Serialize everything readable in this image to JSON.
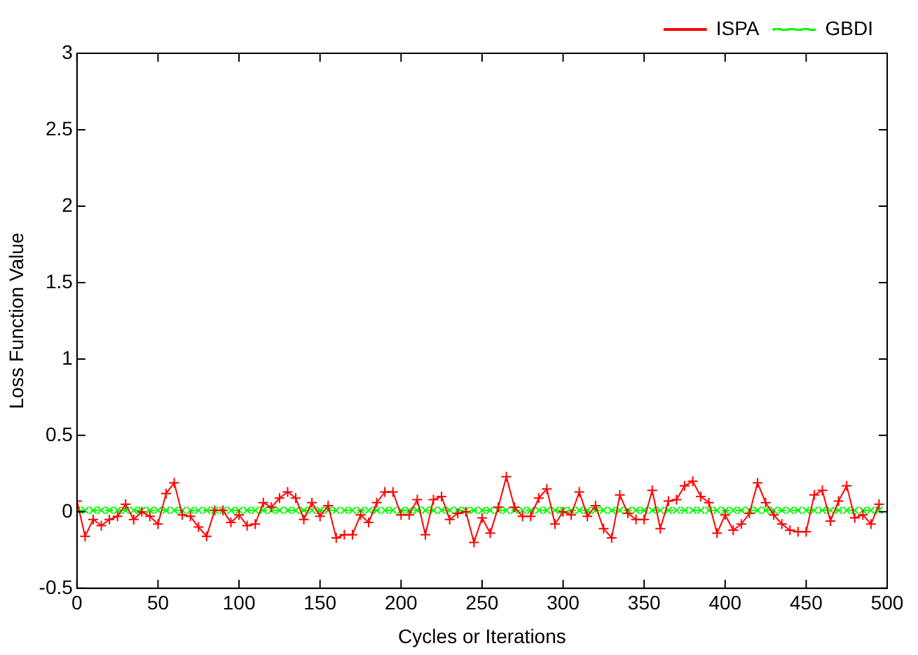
{
  "chart_data": {
    "type": "line",
    "xlabel": "Cycles or Iterations",
    "ylabel": "Loss Function Value",
    "xlim": [
      0,
      500
    ],
    "xticks": [
      0,
      50,
      100,
      150,
      200,
      250,
      300,
      350,
      400,
      450,
      500
    ],
    "ylim": [
      -0.5,
      3
    ],
    "yticks": [
      -0.5,
      0,
      0.5,
      1,
      1.5,
      2,
      2.5,
      3
    ],
    "grid": false,
    "legend": "top right",
    "marker": "cross",
    "x": [
      0,
      5,
      10,
      15,
      20,
      25,
      30,
      35,
      40,
      45,
      50,
      55,
      60,
      65,
      70,
      75,
      80,
      85,
      90,
      95,
      100,
      105,
      110,
      115,
      120,
      125,
      130,
      135,
      140,
      145,
      150,
      155,
      160,
      165,
      170,
      175,
      180,
      185,
      190,
      195,
      200,
      205,
      210,
      215,
      220,
      225,
      230,
      235,
      240,
      245,
      250,
      255,
      260,
      265,
      270,
      275,
      280,
      285,
      290,
      295,
      300,
      305,
      310,
      315,
      320,
      325,
      330,
      335,
      340,
      345,
      350,
      355,
      360,
      365,
      370,
      375,
      380,
      385,
      390,
      395,
      400,
      405,
      410,
      415,
      420,
      425,
      430,
      435,
      440,
      445,
      450,
      455,
      460,
      465,
      470,
      475,
      480,
      485,
      490,
      495
    ],
    "series": [
      {
        "name": "ISPA",
        "color": "#ff0000",
        "line_style": "solid",
        "values": [
          0.07,
          -0.16,
          -0.05,
          -0.09,
          -0.05,
          -0.03,
          0.05,
          -0.05,
          0.0,
          -0.03,
          -0.08,
          0.12,
          0.19,
          -0.02,
          -0.03,
          -0.1,
          -0.16,
          0.01,
          0.01,
          -0.07,
          -0.02,
          -0.09,
          -0.08,
          0.06,
          0.03,
          0.09,
          0.13,
          0.09,
          -0.05,
          0.06,
          -0.03,
          0.04,
          -0.17,
          -0.15,
          -0.15,
          -0.02,
          -0.07,
          0.06,
          0.13,
          0.13,
          -0.02,
          -0.02,
          0.08,
          -0.15,
          0.08,
          0.1,
          -0.05,
          -0.01,
          0.0,
          -0.2,
          -0.04,
          -0.14,
          0.03,
          0.23,
          0.03,
          -0.03,
          -0.03,
          0.09,
          0.15,
          -0.08,
          0.0,
          -0.02,
          0.13,
          -0.03,
          0.04,
          -0.11,
          -0.17,
          0.11,
          -0.01,
          -0.05,
          -0.05,
          0.14,
          -0.11,
          0.07,
          0.08,
          0.17,
          0.2,
          0.1,
          0.06,
          -0.14,
          -0.02,
          -0.12,
          -0.08,
          -0.01,
          0.19,
          0.06,
          -0.02,
          -0.08,
          -0.12,
          -0.13,
          -0.13,
          0.11,
          0.14,
          -0.06,
          0.07,
          0.17,
          -0.04,
          -0.02,
          -0.08,
          0.05
        ]
      },
      {
        "name": "GBDI",
        "color": "#00ff00",
        "line_style": "dashed",
        "values": [
          0.01,
          0.01,
          0.01,
          0.01,
          0.01,
          0.01,
          0.01,
          0.01,
          0.01,
          0.01,
          0.01,
          0.01,
          0.01,
          0.01,
          0.01,
          0.01,
          0.01,
          0.01,
          0.01,
          0.01,
          0.01,
          0.01,
          0.01,
          0.01,
          0.01,
          0.01,
          0.01,
          0.01,
          0.01,
          0.01,
          0.01,
          0.01,
          0.01,
          0.01,
          0.01,
          0.01,
          0.01,
          0.01,
          0.01,
          0.01,
          0.01,
          0.01,
          0.01,
          0.01,
          0.01,
          0.01,
          0.01,
          0.01,
          0.01,
          0.01,
          0.01,
          0.01,
          0.01,
          0.01,
          0.01,
          0.01,
          0.01,
          0.01,
          0.01,
          0.01,
          0.01,
          0.01,
          0.01,
          0.01,
          0.01,
          0.01,
          0.01,
          0.01,
          0.01,
          0.01,
          0.01,
          0.01,
          0.01,
          0.01,
          0.01,
          0.01,
          0.01,
          0.01,
          0.01,
          0.01,
          0.01,
          0.01,
          0.01,
          0.01,
          0.01,
          0.01,
          0.01,
          0.01,
          0.01,
          0.01,
          0.01,
          0.01,
          0.01,
          0.01,
          0.01,
          0.01,
          0.01,
          0.01,
          0.01,
          0.01
        ]
      }
    ]
  }
}
